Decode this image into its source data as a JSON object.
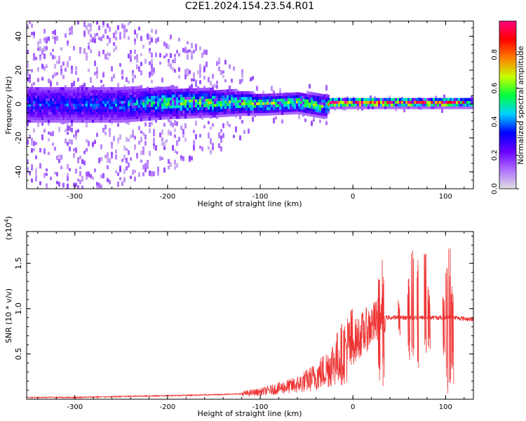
{
  "title": "C2E1.2024.154.23.54.R01",
  "chart_data": [
    {
      "type": "heatmap",
      "title": "C2E1.2024.154.23.54.R01",
      "xlabel": "Height of straight line (km)",
      "ylabel": "Frequency (Hz)",
      "xlim": [
        -352,
        130
      ],
      "ylim": [
        -50,
        49
      ],
      "xticks": [
        -300,
        -200,
        -100,
        0,
        100
      ],
      "yticks": [
        -40,
        -20,
        0,
        20,
        40
      ],
      "colorbar": {
        "label": "Normalized spectral amplitude",
        "range": [
          0,
          1
        ],
        "ticks": [
          "0.0",
          "0.2",
          "0.4",
          "0.6",
          "0.8"
        ],
        "tick_values": [
          0.0,
          0.2,
          0.4,
          0.6,
          0.8
        ],
        "colors": [
          "#e0e0e0",
          "#b070ff",
          "#6a00ff",
          "#0000ff",
          "#00d0ff",
          "#00ff40",
          "#c8ff00",
          "#ff8000",
          "#ff0000",
          "#ff0080"
        ]
      },
      "band_profile": {
        "x": [
          -352,
          -300,
          -250,
          -200,
          -150,
          -120,
          -100,
          -60,
          -30,
          -25,
          0,
          50,
          100,
          130
        ],
        "center_hz": [
          0,
          0,
          0,
          1,
          1,
          1,
          0,
          1,
          -1,
          1,
          1,
          1,
          1,
          1
        ],
        "dense_halfwidth_hz": [
          10,
          10,
          10,
          9,
          8,
          7,
          6,
          6,
          7,
          3,
          3,
          3,
          3,
          3
        ],
        "scatter_halfwidth_hz": [
          49,
          49,
          49,
          40,
          30,
          20,
          12,
          10,
          12,
          5,
          4,
          4,
          4,
          4
        ],
        "peak_amplitude": [
          0.25,
          0.25,
          0.3,
          0.45,
          0.5,
          0.5,
          0.5,
          0.5,
          0.5,
          0.75,
          0.85,
          0.85,
          0.85,
          0.55
        ]
      }
    },
    {
      "type": "line",
      "xlabel": "Height of straight line (km)",
      "ylabel": "SNR (10 * v/v)",
      "y_scale_label": "(x10^4)",
      "xlim": [
        -352,
        130
      ],
      "ylim": [
        0,
        1.85
      ],
      "xticks": [
        -300,
        -200,
        -100,
        0,
        100
      ],
      "yticks": [
        "0.5",
        "1.0",
        "1.5"
      ],
      "ytick_values": [
        0.5,
        1.0,
        1.5
      ],
      "color": "#ee3333",
      "series": [
        {
          "x": [
            -352,
            -300,
            -250,
            -200,
            -150,
            -120,
            -100,
            -80,
            -60,
            -40,
            -30,
            -20,
            -10,
            0,
            10,
            20,
            30,
            35,
            40,
            60,
            80,
            100,
            110,
            130
          ],
          "values": [
            0.02,
            0.02,
            0.03,
            0.04,
            0.05,
            0.06,
            0.08,
            0.12,
            0.16,
            0.25,
            0.32,
            0.42,
            0.52,
            0.62,
            0.72,
            0.82,
            0.88,
            0.9,
            0.9,
            0.9,
            0.9,
            0.9,
            0.9,
            0.88
          ]
        }
      ],
      "spikes": [
        {
          "x": 28,
          "top": 1.35,
          "bottom": 0.2
        },
        {
          "x": 32,
          "top": 1.6,
          "bottom": 0.12
        },
        {
          "x": 50,
          "top": 1.12,
          "bottom": 0.7
        },
        {
          "x": 60,
          "top": 1.35,
          "bottom": 0.4
        },
        {
          "x": 64,
          "top": 1.72,
          "bottom": 0.45
        },
        {
          "x": 70,
          "top": 1.55,
          "bottom": 0.3
        },
        {
          "x": 78,
          "top": 1.62,
          "bottom": 0.45
        },
        {
          "x": 82,
          "top": 1.25,
          "bottom": 0.55
        },
        {
          "x": 98,
          "top": 1.2,
          "bottom": 0.35
        },
        {
          "x": 101,
          "top": 1.5,
          "bottom": 0.05
        },
        {
          "x": 104,
          "top": 1.86,
          "bottom": 0.05
        },
        {
          "x": 107,
          "top": 1.3,
          "bottom": 0.15
        }
      ]
    }
  ]
}
